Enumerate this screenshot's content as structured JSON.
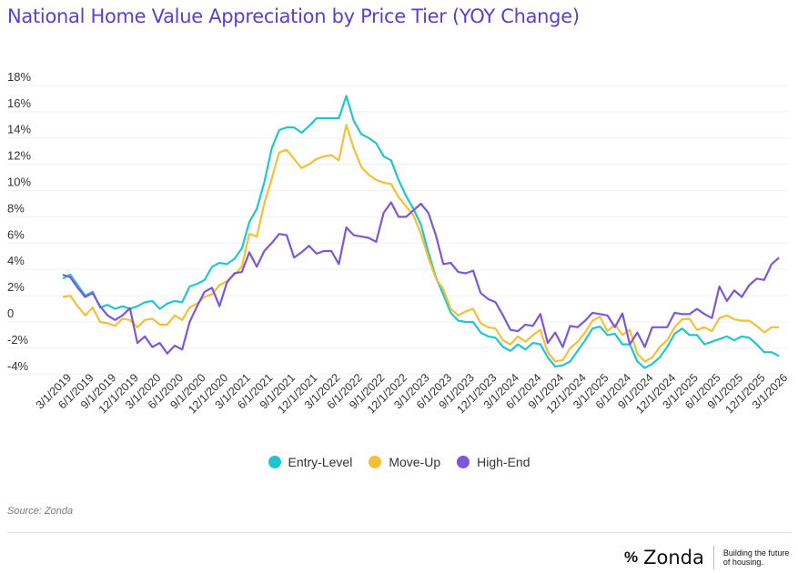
{
  "chart_data": {
    "type": "line",
    "title": "National Home Value Appreciation by Price Tier (YOY Change)",
    "xlabel": "",
    "ylabel": "",
    "ylim": [
      -4,
      18
    ],
    "yticks": [
      "18%",
      "16%",
      "14%",
      "12%",
      "10%",
      "8%",
      "6%",
      "4%",
      "2%",
      "0",
      "-2%",
      "-4%"
    ],
    "ytick_values": [
      18,
      16,
      14,
      12,
      10,
      8,
      6,
      4,
      2,
      0,
      -2,
      -4
    ],
    "x_tick_labels": [
      "3/1/2019",
      "6/1/2019",
      "9/1/2019",
      "12/1/2019",
      "3/1/2020",
      "6/1/2020",
      "9/1/2020",
      "12/1/2020",
      "3/1/2021",
      "6/1/2021",
      "9/1/2021",
      "12/1/2021",
      "3/1/2022",
      "6/1/2022",
      "9/1/2022",
      "12/1/2022",
      "3/1/2023",
      "6/1/2023",
      "9/1/2023",
      "12/1/2023",
      "3/1/2024",
      "6/1/2024",
      "9/1/2024",
      "12/1/2024",
      "3/1/2025",
      "6/1/2024",
      "9/1/2024",
      "12/1/2024",
      "3/1/2025",
      "6/1/2025",
      "9/1/2025",
      "12/1/2025",
      "3/1/2026"
    ],
    "x_tick_every_n_points": 3,
    "grid": true,
    "legend_position": "bottom-center",
    "series": [
      {
        "name": "Entry-Level",
        "color": "#1fc6d1",
        "values": [
          3.3,
          3.6,
          2.8,
          2.0,
          2.3,
          1.1,
          1.3,
          1.0,
          1.2,
          1.0,
          1.2,
          1.5,
          1.6,
          1.0,
          1.4,
          1.6,
          1.5,
          2.7,
          2.9,
          3.2,
          4.2,
          4.5,
          4.4,
          4.8,
          5.6,
          7.6,
          8.6,
          10.6,
          13.2,
          14.6,
          14.8,
          14.8,
          14.4,
          14.9,
          15.5,
          15.5,
          15.5,
          15.5,
          17.2,
          15.3,
          14.3,
          14.0,
          13.6,
          12.6,
          12.3,
          10.8,
          9.6,
          8.6,
          7.4,
          5.3,
          3.4,
          2.1,
          0.7,
          0.1,
          0.0,
          0.0,
          -0.8,
          -1.1,
          -1.2,
          -1.9,
          -2.2,
          -1.7,
          -2.1,
          -1.6,
          -1.7,
          -2.7,
          -3.4,
          -3.3,
          -3.0,
          -2.2,
          -1.4,
          -0.5,
          -0.35,
          -1.0,
          -0.9,
          -1.7,
          -1.7,
          -3.0,
          -3.5,
          -3.2,
          -2.7,
          -1.9,
          -0.9,
          -0.5,
          -1.0,
          -1.0,
          -1.7,
          -1.5,
          -1.3,
          -1.1,
          -1.4,
          -1.1,
          -1.2,
          -1.7,
          -2.3,
          -2.3,
          -2.6
        ]
      },
      {
        "name": "Move-Up",
        "color": "#f6bf35",
        "values": [
          1.9,
          2.0,
          1.2,
          0.5,
          1.1,
          0.0,
          -0.1,
          -0.3,
          0.25,
          0.15,
          -0.4,
          0.15,
          0.25,
          -0.2,
          -0.2,
          0.5,
          0.15,
          1.1,
          1.4,
          1.9,
          2.1,
          2.8,
          3.1,
          3.6,
          4.2,
          6.7,
          6.5,
          9.0,
          10.9,
          12.9,
          13.1,
          12.4,
          11.7,
          12.0,
          12.4,
          12.6,
          12.7,
          12.3,
          15.0,
          13.2,
          11.8,
          11.2,
          10.8,
          10.6,
          10.5,
          9.5,
          8.8,
          8.1,
          6.7,
          4.9,
          3.3,
          2.5,
          1.0,
          0.5,
          0.8,
          1.0,
          -0.1,
          -0.4,
          -0.5,
          -1.4,
          -1.7,
          -1.1,
          -1.5,
          -1.0,
          -0.6,
          -2.3,
          -3.0,
          -2.9,
          -2.0,
          -1.5,
          -0.8,
          0.1,
          0.4,
          -0.7,
          -0.2,
          -1.0,
          -0.6,
          -2.4,
          -3.0,
          -2.7,
          -1.9,
          -1.4,
          -0.4,
          0.2,
          0.25,
          -0.6,
          -0.4,
          -0.7,
          0.3,
          0.5,
          0.2,
          0.1,
          0.1,
          -0.3,
          -0.8,
          -0.4,
          -0.4
        ]
      },
      {
        "name": "High-End",
        "color": "#7a57dd",
        "values": [
          3.6,
          3.4,
          2.6,
          1.9,
          2.2,
          1.2,
          0.5,
          0.15,
          0.5,
          1.05,
          -1.6,
          -1.1,
          -1.9,
          -1.6,
          -2.4,
          -1.8,
          -2.1,
          0.0,
          1.2,
          2.3,
          2.6,
          1.2,
          3.0,
          3.7,
          3.8,
          5.3,
          4.2,
          5.4,
          6.0,
          6.7,
          6.6,
          4.9,
          5.3,
          5.8,
          5.2,
          5.4,
          5.4,
          4.4,
          7.2,
          6.6,
          6.5,
          6.4,
          6.1,
          8.3,
          9.1,
          8.0,
          8.0,
          8.5,
          9.0,
          8.3,
          6.6,
          4.4,
          4.5,
          3.8,
          3.7,
          3.9,
          2.2,
          1.75,
          1.5,
          0.5,
          -0.6,
          -0.7,
          -0.2,
          -0.3,
          0.6,
          -1.6,
          -0.8,
          -1.9,
          -0.3,
          -0.4,
          0.1,
          0.7,
          0.6,
          0.5,
          -0.4,
          0.65,
          -1.7,
          -0.8,
          -1.9,
          -0.4,
          -0.4,
          -0.4,
          0.7,
          0.6,
          0.6,
          1.0,
          0.6,
          0.3,
          2.7,
          1.6,
          2.4,
          1.9,
          2.8,
          3.3,
          3.2,
          4.4,
          4.9
        ]
      }
    ]
  },
  "source": "Source: Zonda",
  "logo": {
    "name": "Zonda",
    "mark": "%",
    "tagline_line1": "Building the future",
    "tagline_line2": "of housing."
  }
}
